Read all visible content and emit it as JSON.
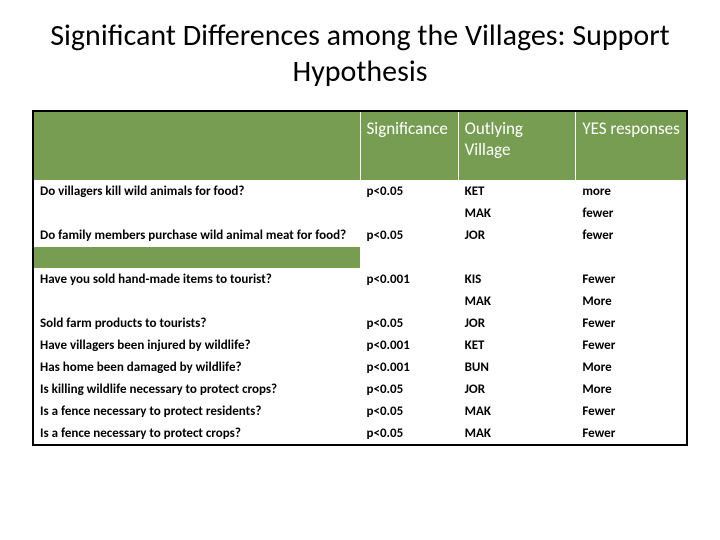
{
  "title": "Significant Differences among the Villages: Support Hypothesis",
  "headers": {
    "q": "",
    "sig": "Significance",
    "out": "Outlying Village",
    "yes": "YES responses"
  },
  "rows": [
    {
      "q": "Do villagers kill wild animals for food?",
      "sig": "p<0.05",
      "out": "KET",
      "yes": "more",
      "gapAfter": false
    },
    {
      "q": "",
      "sig": "",
      "out": "MAK",
      "yes": "fewer",
      "gapAfter": false
    },
    {
      "q": "Do family members purchase wild animal meat for food?",
      "sig": "p<0.05",
      "out": "JOR",
      "yes": "fewer",
      "gapAfter": true
    },
    {
      "q": "Have you sold hand-made items to tourist?",
      "sig": "p<0.001",
      "out": "KIS",
      "yes": "Fewer",
      "gapAfter": false
    },
    {
      "q": "",
      "sig": "",
      "out": "MAK",
      "yes": "More",
      "gapAfter": false
    },
    {
      "q": "Sold farm products to tourists?",
      "sig": "p<0.05",
      "out": "JOR",
      "yes": "Fewer",
      "gapAfter": false
    },
    {
      "q": "Have villagers been injured by wildlife?",
      "sig": "p<0.001",
      "out": "KET",
      "yes": "Fewer",
      "gapAfter": false
    },
    {
      "q": "Has home been damaged by wildlife?",
      "sig": "p<0.001",
      "out": "BUN",
      "yes": "More",
      "gapAfter": false
    },
    {
      "q": "Is killing wildlife necessary to protect crops?",
      "sig": "p<0.05",
      "out": "JOR",
      "yes": "More",
      "gapAfter": false
    },
    {
      "q": "Is a fence necessary to protect residents?",
      "sig": "p<0.05",
      "out": "MAK",
      "yes": "Fewer",
      "gapAfter": false
    },
    {
      "q": "Is a fence necessary to protect crops?",
      "sig": "p<0.05",
      "out": "MAK",
      "yes": "Fewer",
      "gapAfter": false
    }
  ],
  "style": {
    "header_bg": "#769d52",
    "header_fg": "#ffffff",
    "cell_bg": "#ffffff",
    "cell_fg": "#000000",
    "border_color": "#000000",
    "grid_color": "#ffffff",
    "title_fontsize": 30,
    "header_fontsize": 17,
    "cell_fontsize": 13
  }
}
